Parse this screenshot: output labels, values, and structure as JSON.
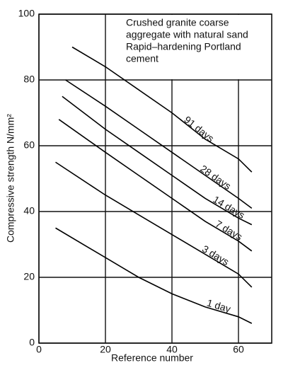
{
  "chart_data": {
    "type": "line",
    "annotation": [
      "Crushed granite coarse",
      "aggregate with natural sand",
      "Rapid–hardening Portland",
      "cement"
    ],
    "x_label": "Reference number",
    "y_label": "Compressive strength N/mm²",
    "xlim": [
      0,
      70
    ],
    "xticks": [
      0,
      20,
      40,
      60
    ],
    "ylim": [
      0,
      100
    ],
    "yticks": [
      0,
      20,
      40,
      60,
      80,
      100
    ],
    "grid": true,
    "series": [
      {
        "name": "91 days",
        "color": "#000000",
        "x": [
          10,
          20,
          30,
          40,
          50,
          60,
          64
        ],
        "values": [
          90,
          84,
          77,
          70,
          62,
          56,
          52
        ]
      },
      {
        "name": "28 days",
        "color": "#000000",
        "x": [
          8,
          20,
          30,
          40,
          50,
          60,
          64
        ],
        "values": [
          80,
          72,
          65,
          58,
          51,
          44,
          41
        ]
      },
      {
        "name": "14 days",
        "color": "#000000",
        "x": [
          7,
          20,
          30,
          40,
          50,
          60,
          64
        ],
        "values": [
          75,
          65,
          58,
          51,
          44,
          38,
          36
        ]
      },
      {
        "name": "7 days",
        "color": "#000000",
        "x": [
          6,
          20,
          30,
          40,
          50,
          60,
          64
        ],
        "values": [
          68,
          58,
          51,
          44,
          37,
          31,
          28
        ]
      },
      {
        "name": "3 days",
        "color": "#000000",
        "x": [
          5,
          20,
          30,
          40,
          50,
          60,
          64
        ],
        "values": [
          55,
          45,
          39,
          33,
          27,
          21,
          17
        ]
      },
      {
        "name": "1 day",
        "color": "#000000",
        "x": [
          5,
          20,
          30,
          40,
          50,
          60,
          64
        ],
        "values": [
          35,
          26,
          20,
          15,
          11,
          8,
          6
        ]
      }
    ]
  }
}
